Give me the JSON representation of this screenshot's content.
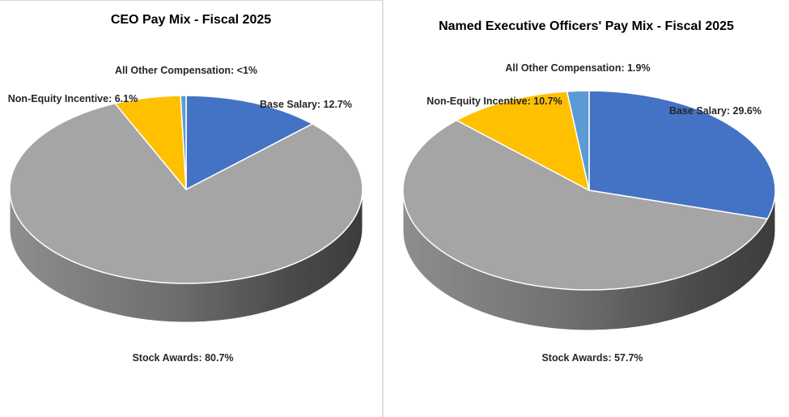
{
  "chart_data": [
    {
      "type": "pie",
      "title": "CEO Pay Mix - Fiscal 2025",
      "slices": [
        {
          "name": "Base Salary",
          "value": 12.7,
          "label": "Base Salary: 12.7%",
          "color": "#4472C4"
        },
        {
          "name": "Stock Awards",
          "value": 80.7,
          "label": "Stock Awards: 80.7%",
          "color": "#A5A5A5"
        },
        {
          "name": "Non-Equity Incentive",
          "value": 6.1,
          "label": "Non-Equity Incentive: 6.1%",
          "color": "#FFC000"
        },
        {
          "name": "All Other Compensation",
          "value": 0.5,
          "label": "All Other Compensation: <1%",
          "color": "#5B9BD5"
        }
      ]
    },
    {
      "type": "pie",
      "title": "Named Executive Officers' Pay Mix - Fiscal 2025",
      "slices": [
        {
          "name": "Base Salary",
          "value": 29.6,
          "label": "Base Salary: 29.6%",
          "color": "#4472C4"
        },
        {
          "name": "Stock Awards",
          "value": 57.7,
          "label": "Stock Awards: 57.7%",
          "color": "#A5A5A5"
        },
        {
          "name": "Non-Equity Incentive",
          "value": 10.7,
          "label": "Non-Equity Incentive: 10.7%",
          "color": "#FFC000"
        },
        {
          "name": "All Other Compensation",
          "value": 1.9,
          "label": "All Other Compensation: 1.9%",
          "color": "#5B9BD5"
        }
      ]
    }
  ]
}
